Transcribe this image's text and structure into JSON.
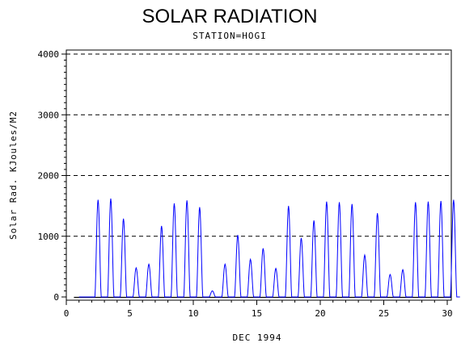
{
  "chart_data": {
    "type": "line",
    "title": "SOLAR RADIATION",
    "subtitle": "STATION=HOGI",
    "xlabel": "DEC 1994",
    "ylabel": "Solar Rad. KJoules/M2",
    "xlim": [
      0,
      30
    ],
    "ylim": [
      0,
      4000
    ],
    "x_ticks": [
      0,
      5,
      10,
      15,
      20,
      25,
      30
    ],
    "y_ticks": [
      0,
      1000,
      2000,
      3000,
      4000
    ],
    "grid": "horizontal-dashed",
    "line_color": "#0000ff",
    "baseline_color": "#000000",
    "series": [
      {
        "values": [
          0,
          1600,
          1620,
          1290,
          480,
          540,
          1170,
          1540,
          1590,
          1480,
          100,
          540,
          1020,
          620,
          800,
          470,
          1500,
          970,
          1260,
          1570,
          1560,
          1530,
          690,
          1380,
          370,
          450,
          1560,
          1570,
          1580,
          1600
        ]
      }
    ]
  }
}
